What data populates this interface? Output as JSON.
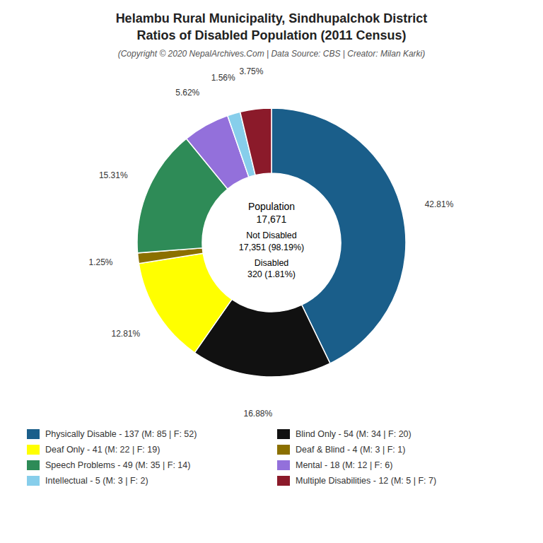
{
  "chart_data": {
    "type": "pie",
    "title": "Helambu Rural Municipality, Sindhupalchok District\nRatios of Disabled Population (2011 Census)",
    "subtitle": "(Copyright © 2020 NepalArchives.Com | Data Source: CBS | Creator: Milan Karki)",
    "categories": [
      "Physically Disable - 137 (M: 85 | F: 52)",
      "Blind Only - 54 (M: 34 | F: 20)",
      "Deaf Only - 41 (M: 22 | F: 19)",
      "Deaf & Blind - 4 (M: 3 | F: 1)",
      "Speech Problems - 49 (M: 35 | F: 14)",
      "Mental - 18 (M: 12 | F: 6)",
      "Intellectual - 5 (M: 3 | F: 2)",
      "Multiple Disabilities - 12 (M: 5 | F: 7)"
    ],
    "values": [
      42.81,
      16.88,
      12.81,
      1.25,
      15.31,
      5.62,
      1.56,
      3.75
    ],
    "value_labels": [
      "42.81%",
      "16.88%",
      "12.81%",
      "1.25%",
      "15.31%",
      "5.62%",
      "1.56%",
      "3.75%"
    ],
    "colors": [
      "#1a5e8a",
      "#111111",
      "#ffff00",
      "#8b7000",
      "#2e8b57",
      "#9370db",
      "#87ceeb",
      "#8b1a2a"
    ],
    "data_labels": true,
    "legend": "bottom",
    "annotations": [
      "Population\n17,671",
      "Not Disabled\n17,351 (98.19%)",
      "Disabled\n320 (1.81%)"
    ]
  }
}
